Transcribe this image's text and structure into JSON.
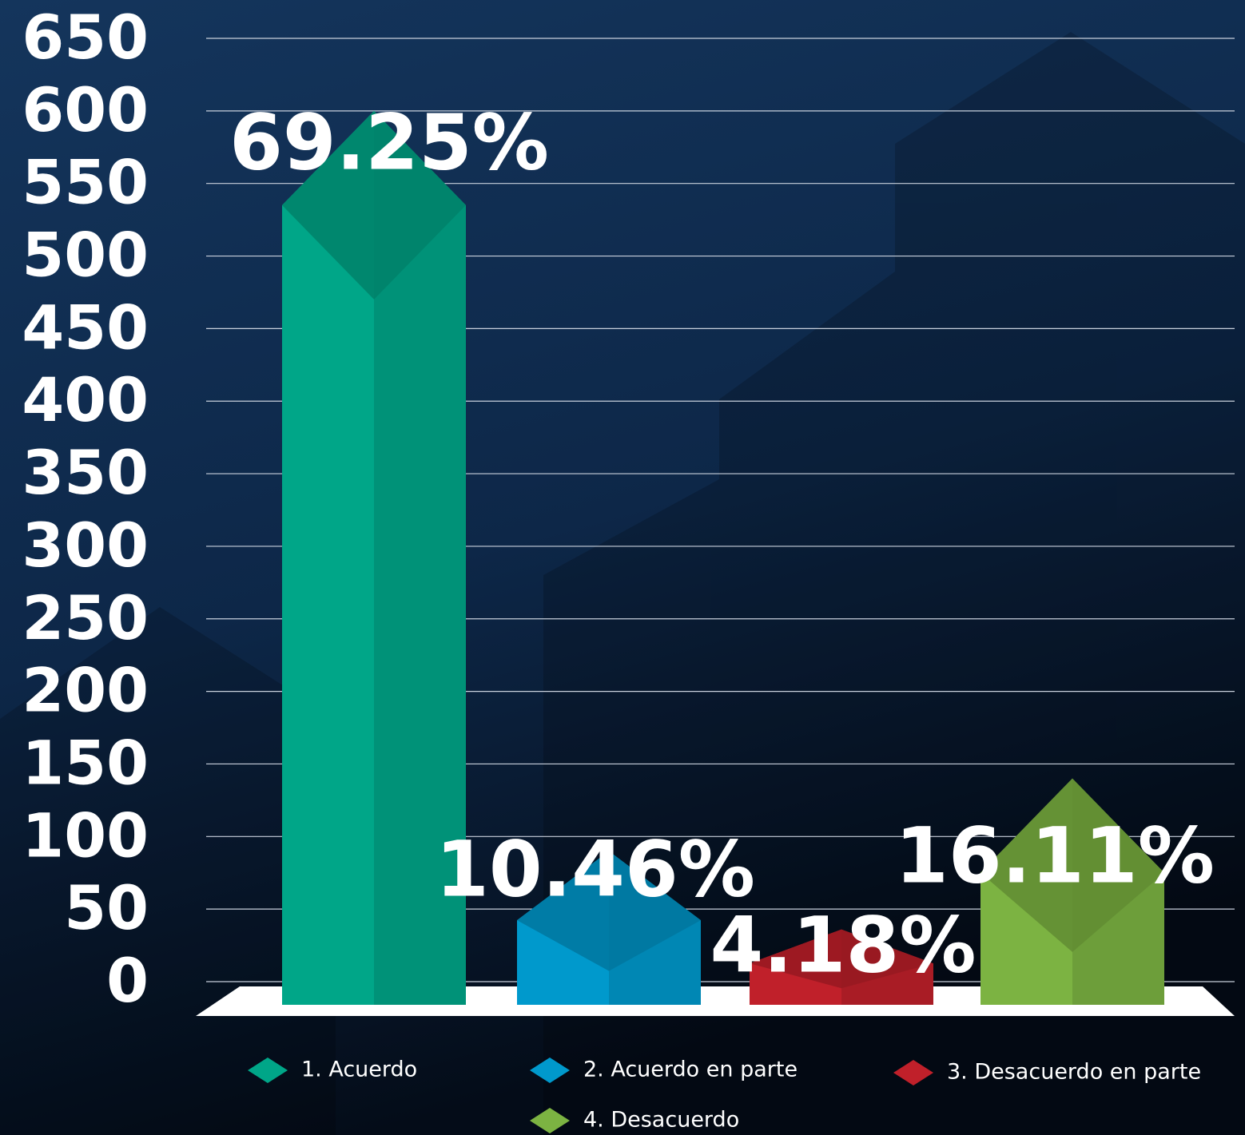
{
  "chart_data": {
    "type": "bar",
    "categories": [
      "1. Acuerdo",
      "2. Acuerdo en parte",
      "3. Desacuerdo en parte",
      "4. Desacuerdo"
    ],
    "values": [
      600,
      90,
      36,
      140
    ],
    "annotations": [
      "69.25%",
      "10.46%",
      "4.18%",
      "16.11%"
    ],
    "colors": [
      "#00a688",
      "#0099cc",
      "#c0202a",
      "#7cb342"
    ],
    "ylim": [
      0,
      650
    ],
    "yticks": [
      0,
      50,
      100,
      150,
      200,
      250,
      300,
      350,
      400,
      450,
      500,
      550,
      600,
      650
    ],
    "grid": true,
    "legend": "bottom"
  }
}
